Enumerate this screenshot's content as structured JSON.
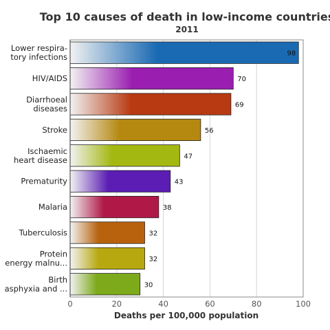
{
  "chart_data": {
    "type": "bar",
    "orientation": "horizontal",
    "title": "Top 10 causes of death in low-income countries",
    "subtitle": "2011",
    "xlabel": "Deaths per 100,000 population",
    "ylabel": "",
    "xlim": [
      0,
      100
    ],
    "xticks": [
      0,
      20,
      40,
      60,
      80,
      100
    ],
    "grid": true,
    "legend": "none",
    "categories": [
      [
        "Lower respira-",
        "tory infections"
      ],
      [
        "HIV/AIDS"
      ],
      [
        "Diarrhoeal",
        "diseases"
      ],
      [
        "Stroke"
      ],
      [
        "Ischaemic",
        "heart disease"
      ],
      [
        "Prematurity"
      ],
      [
        "Malaria"
      ],
      [
        "Tuberculosis"
      ],
      [
        "Protein",
        "energy malnu..."
      ],
      [
        "Birth",
        "asphyxia and ..."
      ]
    ],
    "values": [
      98,
      70,
      69,
      56,
      47,
      43,
      38,
      32,
      32,
      30
    ],
    "colors": [
      "#1a6ab3",
      "#9a1fb0",
      "#b83a12",
      "#b58810",
      "#a4b812",
      "#5b1db3",
      "#b01848",
      "#b8620e",
      "#b8a810",
      "#7daa1a"
    ]
  }
}
